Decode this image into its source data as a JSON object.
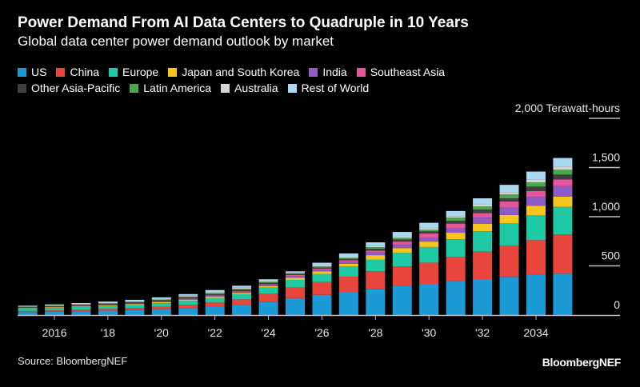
{
  "header": {
    "title": "Power Demand From AI Data Centers to Quadruple in 10 Years",
    "subtitle": "Global data center power demand outlook by market"
  },
  "footer": {
    "source": "Source: BloombergNEF",
    "logo": "BloombergNEF"
  },
  "chart_data": {
    "type": "bar",
    "stacked": true,
    "title": "Power Demand From AI Data Centers to Quadruple in 10 Years",
    "subtitle": "Global data center power demand outlook by market",
    "unit_label": "Terawatt-hours",
    "ylim": [
      0,
      2000
    ],
    "y_ticks": [
      0,
      500,
      1000,
      1500,
      2000
    ],
    "y_tick_labels": [
      "0",
      "500",
      "1,000",
      "1,500",
      "2,000 Terawatt-hours"
    ],
    "x_tick_labels": [
      {
        "year": 2016,
        "label": "2016"
      },
      {
        "year": 2018,
        "label": "'18"
      },
      {
        "year": 2020,
        "label": "'20"
      },
      {
        "year": 2022,
        "label": "'22"
      },
      {
        "year": 2024,
        "label": "'24"
      },
      {
        "year": 2026,
        "label": "'26"
      },
      {
        "year": 2028,
        "label": "'28"
      },
      {
        "year": 2030,
        "label": "'30"
      },
      {
        "year": 2032,
        "label": "'32"
      },
      {
        "year": 2034,
        "label": "2034"
      }
    ],
    "legend_position": "top-left",
    "grid": "horizontal, right side only",
    "categories": [
      2015,
      2016,
      2017,
      2018,
      2019,
      2020,
      2021,
      2022,
      2023,
      2024,
      2025,
      2026,
      2027,
      2028,
      2029,
      2030,
      2031,
      2032,
      2033,
      2034,
      2035
    ],
    "series": [
      {
        "name": "US",
        "color": "#1b9ad6",
        "values": [
          30,
          34,
          38,
          44,
          50,
          60,
          72,
          85,
          102,
          131,
          172,
          205,
          232,
          262,
          293,
          317,
          342,
          366,
          388,
          407,
          420
        ]
      },
      {
        "name": "China",
        "color": "#e8453c",
        "values": [
          12,
          14,
          16,
          18,
          21,
          26,
          33,
          42,
          58,
          88,
          109,
          131,
          158,
          183,
          202,
          216,
          249,
          279,
          320,
          355,
          400
        ]
      },
      {
        "name": "Europe",
        "color": "#1ec9a5",
        "values": [
          22,
          24,
          27,
          29,
          31,
          35,
          40,
          47,
          52,
          60,
          77,
          82,
          104,
          120,
          137,
          159,
          180,
          208,
          227,
          254,
          280
        ]
      },
      {
        "name": "Japan and South Korea",
        "color": "#f8c51c",
        "values": [
          5,
          6,
          7,
          8,
          9,
          10,
          12,
          13,
          14,
          16,
          22,
          27,
          27,
          44,
          49,
          55,
          66,
          74,
          82,
          96,
          104
        ]
      },
      {
        "name": "India",
        "color": "#8e5cc4",
        "values": [
          2,
          2,
          3,
          3,
          4,
          4,
          5,
          6,
          8,
          11,
          16,
          16,
          22,
          27,
          33,
          38,
          49,
          63,
          77,
          90,
          107
        ]
      },
      {
        "name": "Southeast Asia",
        "color": "#e5559b",
        "values": [
          2,
          2,
          3,
          3,
          4,
          5,
          6,
          7,
          8,
          8,
          11,
          11,
          14,
          19,
          33,
          44,
          44,
          46,
          60,
          60,
          68
        ]
      },
      {
        "name": "Other Asia-Pacific",
        "color": "#3f3f3f",
        "values": [
          6,
          7,
          8,
          9,
          10,
          11,
          12,
          14,
          15,
          14,
          11,
          11,
          14,
          19,
          22,
          22,
          27,
          36,
          33,
          44,
          49
        ]
      },
      {
        "name": "Latin America",
        "color": "#4aa84a",
        "values": [
          5,
          6,
          6,
          7,
          7,
          8,
          9,
          10,
          11,
          11,
          8,
          11,
          11,
          16,
          16,
          16,
          33,
          33,
          41,
          44,
          49
        ]
      },
      {
        "name": "Australia",
        "color": "#d6d6d6",
        "values": [
          4,
          4,
          5,
          5,
          6,
          7,
          8,
          9,
          10,
          11,
          8,
          11,
          11,
          11,
          11,
          16,
          16,
          22,
          22,
          27,
          33
        ]
      },
      {
        "name": "Rest of World",
        "color": "#a9d8f2",
        "values": [
          7,
          9,
          9,
          11,
          13,
          14,
          16,
          21,
          20,
          14,
          11,
          27,
          33,
          38,
          49,
          55,
          52,
          60,
          74,
          82,
          87
        ]
      }
    ]
  }
}
